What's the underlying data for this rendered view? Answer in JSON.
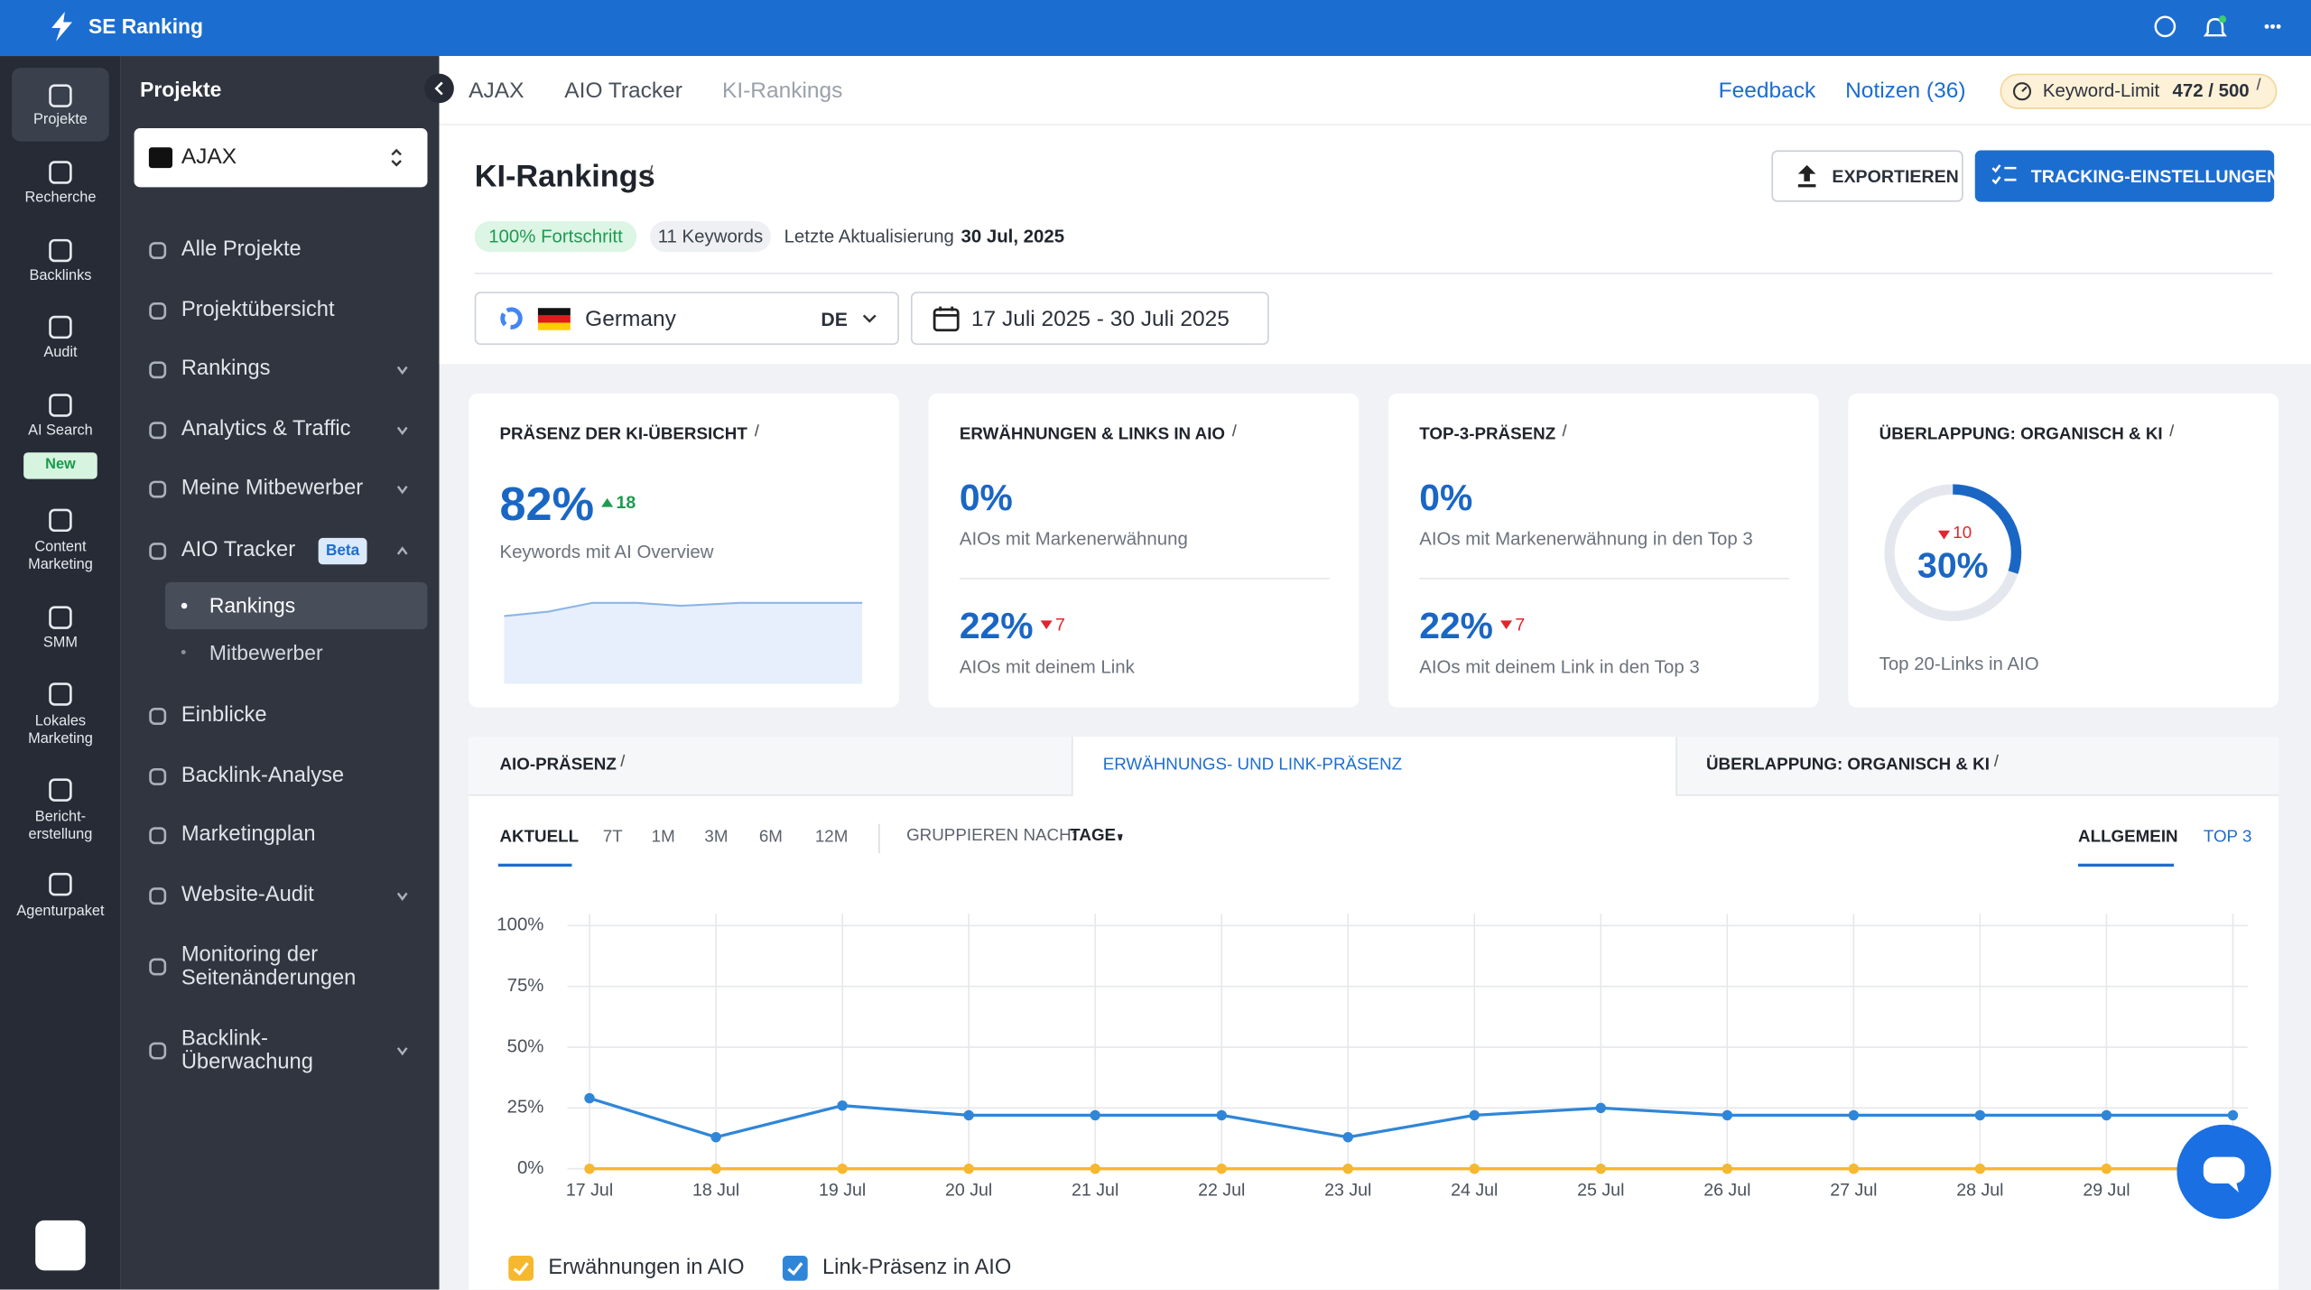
{
  "topbar": {
    "brand": "SE Ranking"
  },
  "rail": [
    {
      "label": "Projekte"
    },
    {
      "label": "Recherche"
    },
    {
      "label": "Backlinks"
    },
    {
      "label": "Audit"
    },
    {
      "label": "AI Search",
      "badge": "New"
    },
    {
      "label": "Content Marketing"
    },
    {
      "label": "SMM"
    },
    {
      "label": "Lokales Marketing"
    },
    {
      "label": "Bericht-erstellung"
    },
    {
      "label": "Agenturpaket"
    }
  ],
  "sidebar": {
    "heading": "Projekte",
    "project": "AJAX",
    "items": [
      {
        "label": "Alle Projekte"
      },
      {
        "label": "Projektübersicht"
      },
      {
        "label": "Rankings",
        "chevron": "down"
      },
      {
        "label": "Analytics & Traffic",
        "chevron": "down"
      },
      {
        "label": "Meine Mitbewerber",
        "chevron": "down"
      },
      {
        "label": "AIO Tracker",
        "badge": "Beta",
        "chevron": "up",
        "children": [
          "Rankings",
          "Mitbewerber"
        ]
      },
      {
        "label": "Einblicke"
      },
      {
        "label": "Backlink-Analyse"
      },
      {
        "label": "Marketingplan"
      },
      {
        "label": "Website-Audit",
        "chevron": "down"
      },
      {
        "label": "Monitoring der Seitenänderungen"
      },
      {
        "label": "Backlink-Überwachung",
        "chevron": "down"
      }
    ]
  },
  "breadcrumb": [
    "AJAX",
    "AIO Tracker",
    "KI-Rankings"
  ],
  "header_links": {
    "feedback": "Feedback",
    "notes": "Notizen (36)",
    "limit_label": "Keyword-Limit",
    "limit_value": "472 / 500"
  },
  "page": {
    "title": "KI-Rankings",
    "progress": "100% Fortschritt",
    "keywords": "11 Keywords",
    "updated_label": "Letzte Aktualisierung",
    "updated": "30 Jul, 2025",
    "export": "EXPORTIEREN",
    "settings": "TRACKING-EINSTELLUNGEN"
  },
  "filters": {
    "country": "Germany",
    "code": "DE",
    "dates": "17 Juli 2025 - 30 Juli 2025"
  },
  "cards": [
    {
      "title": "PRÄSENZ DER KI-ÜBERSICHT",
      "value": "82%",
      "delta": "18",
      "trend": "up",
      "caption": "Keywords mit AI Overview"
    },
    {
      "title": "ERWÄHNUNGEN & LINKS IN AIO",
      "value": "0%",
      "caption": "AIOs mit Markenerwähnung",
      "value2": "22%",
      "delta2": "7",
      "trend2": "down",
      "caption2": "AIOs mit deinem Link"
    },
    {
      "title": "TOP-3-PRÄSENZ",
      "value": "0%",
      "caption": "AIOs mit Markenerwähnung in den Top 3",
      "value2": "22%",
      "delta2": "7",
      "trend2": "down",
      "caption2": "AIOs mit deinem Link in den Top 3"
    },
    {
      "title": "ÜBERLAPPUNG: ORGANISCH & KI",
      "value": 30,
      "value_label": "30%",
      "delta": "10",
      "trend": "down",
      "caption": "Top 20-Links in AIO"
    }
  ],
  "tabs": [
    "AIO-PRÄSENZ",
    "ERWÄHNUNGS- UND LINK-PRÄSENZ",
    "ÜBERLAPPUNG: ORGANISCH & KI"
  ],
  "active_tab": 1,
  "periods": [
    "AKTUELL",
    "7T",
    "1M",
    "3M",
    "6M",
    "12M"
  ],
  "group_by": {
    "label": "GRUPPIEREN NACH:",
    "value": "TAGE"
  },
  "views": [
    "ALLGEMEIN",
    "TOP 3"
  ],
  "chart_data": {
    "type": "line",
    "categories": [
      "17 Jul",
      "18 Jul",
      "19 Jul",
      "20 Jul",
      "21 Jul",
      "22 Jul",
      "23 Jul",
      "24 Jul",
      "25 Jul",
      "26 Jul",
      "27 Jul",
      "28 Jul",
      "29 Jul",
      null
    ],
    "series": [
      {
        "name": "Erwähnungen in AIO",
        "color": "#f5b82e",
        "values": [
          0,
          0,
          0,
          0,
          0,
          0,
          0,
          0,
          0,
          0,
          0,
          0,
          0,
          0
        ]
      },
      {
        "name": "Link-Präsenz in AIO",
        "color": "#2f86d8",
        "values": [
          29,
          13,
          26,
          22,
          22,
          22,
          13,
          22,
          25,
          22,
          22,
          22,
          22,
          22
        ]
      }
    ],
    "ylim": [
      0,
      100
    ],
    "yticks": [
      {
        "value": 0,
        "label": "0%"
      },
      {
        "value": 25,
        "label": "25%"
      },
      {
        "value": 50,
        "label": "50%"
      },
      {
        "value": 75,
        "label": "75%"
      },
      {
        "value": 100,
        "label": "100%"
      }
    ],
    "grid": true
  }
}
